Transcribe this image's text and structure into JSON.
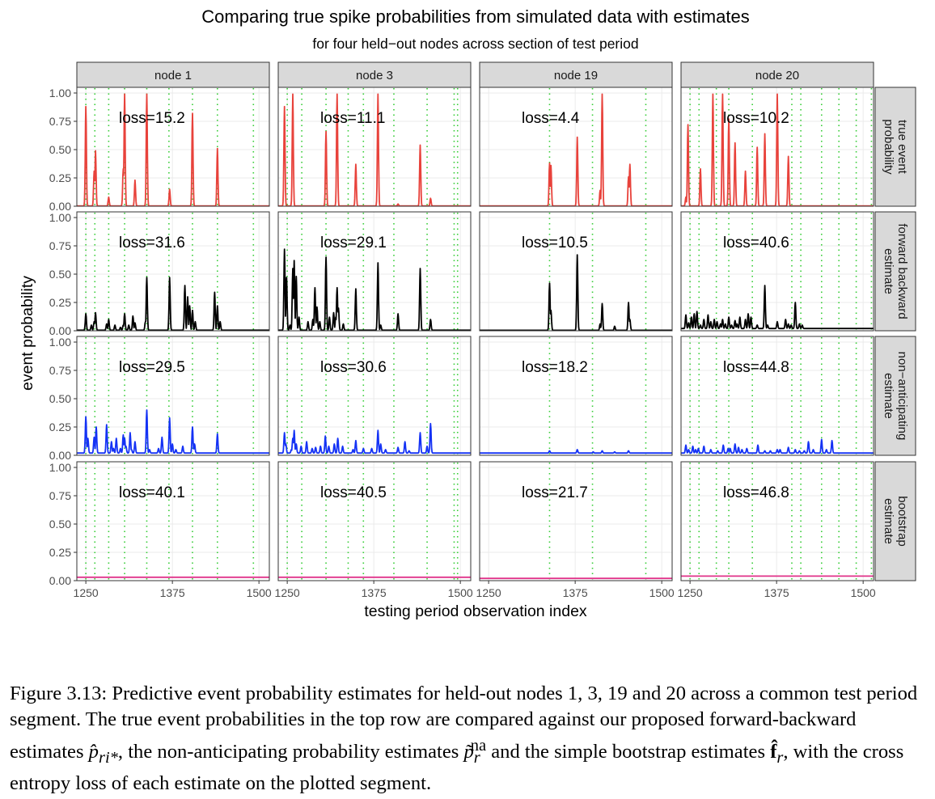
{
  "chart_data": {
    "type": "line",
    "title": "Comparing true spike probabilities from simulated data with estimates",
    "subtitle": "for four held−out nodes across section of test period",
    "xlabel": "testing period observation index",
    "ylabel": "event probability",
    "xlim": [
      1237,
      1515
    ],
    "ylim": [
      0,
      1.05
    ],
    "x_ticks": [
      1250,
      1375,
      1500
    ],
    "x_tick_labels": [
      "1250",
      "1375",
      "1500"
    ],
    "y_ticks": [
      0,
      0.25,
      0.5,
      0.75,
      1.0
    ],
    "y_tick_labels": [
      "0.00",
      "0.25",
      "0.50",
      "0.75",
      "1.00"
    ],
    "grid": true,
    "event_marker_style": "green dotted vertical lines at observed event indices",
    "columns": [
      {
        "label": "node 1",
        "events": [
          1250,
          1263,
          1283,
          1306,
          1338,
          1370,
          1404,
          1440,
          1492
        ]
      },
      {
        "label": "node 3",
        "events": [
          1250,
          1271,
          1306,
          1338,
          1360,
          1404,
          1452,
          1491,
          1496
        ]
      },
      {
        "label": "node 19",
        "events": [
          1338,
          1400,
          1477
        ]
      },
      {
        "label": "node 20",
        "events": [
          1250,
          1263,
          1288,
          1306,
          1340,
          1397,
          1410,
          1440,
          1465,
          1490,
          1512
        ]
      }
    ],
    "rows": [
      {
        "label": "true event probability",
        "label_lines": [
          "true event",
          "probability"
        ],
        "color": "#E8423B",
        "losses": [
          "loss=15.2",
          "loss=11.1",
          "loss=4.4",
          "loss=10.2"
        ],
        "spikes": [
          [
            [
              1250,
              0.88
            ],
            [
              1262,
              0.31
            ],
            [
              1264,
              0.49
            ],
            [
              1283,
              0.08
            ],
            [
              1304,
              0.33
            ],
            [
              1306,
              0.99
            ],
            [
              1321,
              0.23
            ],
            [
              1338,
              0.99
            ],
            [
              1371,
              0.15
            ],
            [
              1404,
              0.82
            ],
            [
              1440,
              0.51
            ]
          ],
          [
            [
              1246,
              0.88
            ],
            [
              1258,
              0.99
            ],
            [
              1306,
              0.66
            ],
            [
              1322,
              0.99
            ],
            [
              1349,
              0.37
            ],
            [
              1381,
              0.99
            ],
            [
              1410,
              0.02
            ],
            [
              1442,
              0.54
            ],
            [
              1457,
              0.07
            ]
          ],
          [
            [
              1338,
              0.38
            ],
            [
              1340,
              0.36
            ],
            [
              1378,
              0.61
            ],
            [
              1411,
              0.14
            ],
            [
              1414,
              0.99
            ],
            [
              1452,
              0.26
            ],
            [
              1454,
              0.37
            ]
          ],
          [
            [
              1244,
              0.08
            ],
            [
              1247,
              0.72
            ],
            [
              1265,
              0.33
            ],
            [
              1283,
              0.99
            ],
            [
              1297,
              0.99
            ],
            [
              1306,
              0.77
            ],
            [
              1315,
              0.56
            ],
            [
              1330,
              0.31
            ],
            [
              1347,
              0.52
            ],
            [
              1358,
              0.64
            ],
            [
              1376,
              0.99
            ],
            [
              1392,
              0.44
            ]
          ]
        ]
      },
      {
        "label": "forward backward estimate",
        "label_lines": [
          "forward backward",
          "estimate"
        ],
        "color": "#000000",
        "losses": [
          "loss=31.6",
          "loss=29.1",
          "loss=10.5",
          "loss=40.6"
        ],
        "spikes": [
          [
            [
              1250,
              0.15
            ],
            [
              1258,
              0.05
            ],
            [
              1262,
              0.08
            ],
            [
              1264,
              0.16
            ],
            [
              1280,
              0.06
            ],
            [
              1283,
              0.1
            ],
            [
              1292,
              0.05
            ],
            [
              1300,
              0.03
            ],
            [
              1304,
              0.05
            ],
            [
              1306,
              0.15
            ],
            [
              1312,
              0.05
            ],
            [
              1318,
              0.13
            ],
            [
              1321,
              0.07
            ],
            [
              1336,
              0.08
            ],
            [
              1338,
              0.47
            ],
            [
              1371,
              0.47
            ],
            [
              1393,
              0.4
            ],
            [
              1397,
              0.3
            ],
            [
              1400,
              0.22
            ],
            [
              1404,
              0.18
            ],
            [
              1408,
              0.08
            ],
            [
              1436,
              0.34
            ],
            [
              1440,
              0.22
            ],
            [
              1444,
              0.08
            ]
          ],
          [
            [
              1246,
              0.72
            ],
            [
              1249,
              0.47
            ],
            [
              1254,
              0.05
            ],
            [
              1258,
              0.55
            ],
            [
              1260,
              0.62
            ],
            [
              1263,
              0.48
            ],
            [
              1267,
              0.12
            ],
            [
              1280,
              0.08
            ],
            [
              1287,
              0.1
            ],
            [
              1290,
              0.38
            ],
            [
              1293,
              0.21
            ],
            [
              1297,
              0.08
            ],
            [
              1306,
              0.65
            ],
            [
              1311,
              0.12
            ],
            [
              1317,
              0.16
            ],
            [
              1320,
              0.12
            ],
            [
              1322,
              0.38
            ],
            [
              1324,
              0.2
            ],
            [
              1331,
              0.06
            ],
            [
              1349,
              0.37
            ],
            [
              1381,
              0.6
            ],
            [
              1385,
              0.05
            ],
            [
              1410,
              0.15
            ],
            [
              1442,
              0.55
            ],
            [
              1457,
              0.1
            ]
          ],
          [
            [
              1338,
              0.42
            ],
            [
              1340,
              0.18
            ],
            [
              1378,
              0.67
            ],
            [
              1411,
              0.06
            ],
            [
              1414,
              0.24
            ],
            [
              1432,
              0.04
            ],
            [
              1452,
              0.25
            ],
            [
              1454,
              0.1
            ]
          ],
          [
            [
              1244,
              0.14
            ],
            [
              1248,
              0.07
            ],
            [
              1252,
              0.12
            ],
            [
              1256,
              0.15
            ],
            [
              1260,
              0.17
            ],
            [
              1265,
              0.05
            ],
            [
              1270,
              0.1
            ],
            [
              1276,
              0.14
            ],
            [
              1280,
              0.08
            ],
            [
              1285,
              0.1
            ],
            [
              1289,
              0.08
            ],
            [
              1294,
              0.06
            ],
            [
              1297,
              0.1
            ],
            [
              1301,
              0.06
            ],
            [
              1306,
              0.12
            ],
            [
              1310,
              0.05
            ],
            [
              1315,
              0.09
            ],
            [
              1318,
              0.06
            ],
            [
              1322,
              0.12
            ],
            [
              1330,
              0.1
            ],
            [
              1334,
              0.15
            ],
            [
              1338,
              0.12
            ],
            [
              1347,
              0.05
            ],
            [
              1358,
              0.4
            ],
            [
              1362,
              0.05
            ],
            [
              1376,
              0.08
            ],
            [
              1388,
              0.1
            ],
            [
              1392,
              0.06
            ],
            [
              1396,
              0.05
            ],
            [
              1402,
              0.25
            ],
            [
              1408,
              0.06
            ],
            [
              1412,
              0.05
            ]
          ]
        ]
      },
      {
        "label": "non−anticipating estimate",
        "label_lines": [
          "non−anticipating",
          "estimate"
        ],
        "color": "#1432F5",
        "losses": [
          "loss=29.5",
          "loss=30.6",
          "loss=18.2",
          "loss=44.8"
        ],
        "spikes": [
          [
            [
              1250,
              0.34
            ],
            [
              1253,
              0.15
            ],
            [
              1262,
              0.16
            ],
            [
              1265,
              0.25
            ],
            [
              1280,
              0.27
            ],
            [
              1287,
              0.12
            ],
            [
              1290,
              0.06
            ],
            [
              1294,
              0.15
            ],
            [
              1300,
              0.06
            ],
            [
              1304,
              0.18
            ],
            [
              1306,
              0.15
            ],
            [
              1308,
              0.08
            ],
            [
              1314,
              0.2
            ],
            [
              1316,
              0.05
            ],
            [
              1321,
              0.12
            ],
            [
              1338,
              0.4
            ],
            [
              1342,
              0.05
            ],
            [
              1355,
              0.06
            ],
            [
              1360,
              0.16
            ],
            [
              1371,
              0.33
            ],
            [
              1375,
              0.1
            ],
            [
              1380,
              0.05
            ],
            [
              1390,
              0.08
            ],
            [
              1404,
              0.25
            ],
            [
              1407,
              0.1
            ],
            [
              1440,
              0.19
            ]
          ],
          [
            [
              1246,
              0.2
            ],
            [
              1248,
              0.1
            ],
            [
              1256,
              0.05
            ],
            [
              1258,
              0.15
            ],
            [
              1260,
              0.22
            ],
            [
              1263,
              0.1
            ],
            [
              1270,
              0.08
            ],
            [
              1278,
              0.12
            ],
            [
              1286,
              0.06
            ],
            [
              1291,
              0.07
            ],
            [
              1298,
              0.08
            ],
            [
              1305,
              0.17
            ],
            [
              1310,
              0.08
            ],
            [
              1318,
              0.1
            ],
            [
              1323,
              0.15
            ],
            [
              1330,
              0.08
            ],
            [
              1345,
              0.05
            ],
            [
              1349,
              0.13
            ],
            [
              1360,
              0.06
            ],
            [
              1372,
              0.06
            ],
            [
              1381,
              0.22
            ],
            [
              1385,
              0.1
            ],
            [
              1392,
              0.05
            ],
            [
              1410,
              0.07
            ],
            [
              1420,
              0.12
            ],
            [
              1426,
              0.04
            ],
            [
              1442,
              0.2
            ],
            [
              1452,
              0.08
            ],
            [
              1457,
              0.28
            ]
          ],
          [
            [
              1338,
              0.04
            ],
            [
              1351,
              0.02
            ],
            [
              1378,
              0.05
            ],
            [
              1392,
              0.02
            ],
            [
              1401,
              0.03
            ],
            [
              1414,
              0.04
            ],
            [
              1418,
              0.02
            ],
            [
              1432,
              0.03
            ],
            [
              1452,
              0.04
            ]
          ],
          [
            [
              1244,
              0.09
            ],
            [
              1248,
              0.05
            ],
            [
              1254,
              0.08
            ],
            [
              1258,
              0.05
            ],
            [
              1262,
              0.06
            ],
            [
              1270,
              0.08
            ],
            [
              1280,
              0.05
            ],
            [
              1290,
              0.04
            ],
            [
              1298,
              0.09
            ],
            [
              1305,
              0.06
            ],
            [
              1308,
              0.06
            ],
            [
              1315,
              0.1
            ],
            [
              1320,
              0.07
            ],
            [
              1325,
              0.05
            ],
            [
              1332,
              0.06
            ],
            [
              1348,
              0.09
            ],
            [
              1358,
              0.04
            ],
            [
              1366,
              0.04
            ],
            [
              1376,
              0.05
            ],
            [
              1380,
              0.05
            ],
            [
              1392,
              0.07
            ],
            [
              1402,
              0.05
            ],
            [
              1408,
              0.04
            ],
            [
              1415,
              0.04
            ],
            [
              1421,
              0.12
            ],
            [
              1428,
              0.05
            ],
            [
              1440,
              0.14
            ],
            [
              1447,
              0.05
            ],
            [
              1455,
              0.13
            ]
          ]
        ]
      },
      {
        "label": "bootstrap estimate",
        "label_lines": [
          "bootstrap",
          "estimate"
        ],
        "color": "#E0338A",
        "losses": [
          "loss=40.1",
          "loss=40.5",
          "loss=21.7",
          "loss=46.8"
        ],
        "spikes": [
          [],
          [],
          [],
          []
        ]
      }
    ],
    "baselines": [
      [
        0.003,
        0.003,
        0.003,
        0.003
      ],
      [
        0.005,
        0.005,
        0.004,
        0.02
      ],
      [
        0.02,
        0.02,
        0.02,
        0.02
      ],
      [
        0.03,
        0.03,
        0.02,
        0.04
      ]
    ]
  },
  "caption": {
    "lead": "Figure 3.13: ",
    "part1": "Predictive event probability estimates for held-out nodes 1, 3, 19 and 20 across a common test period segment. The true event probabilities in the top row are compared against our proposed forward-backward estimates ",
    "sym1_base": "p̂",
    "sym1_sub": "ri*",
    "part2": ", the non-anticipating probability estimates ",
    "sym2_base": "p̃",
    "sym2_sub": "r",
    "sym2_sup": "na",
    "part3": " and the simple bootstrap estimates ",
    "sym3_base": "f̂",
    "sym3_sub": "r",
    "part4": ", with the cross entropy loss of each estimate on the plotted segment."
  }
}
